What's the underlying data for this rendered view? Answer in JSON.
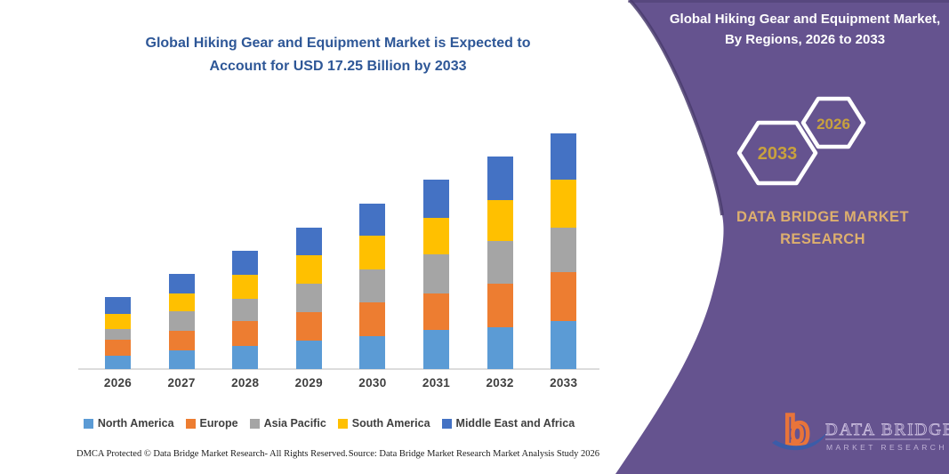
{
  "page": {
    "background": "#FFFFFF",
    "accent_purple": "#65538F",
    "panel_edge_dark": "#4A3C6E"
  },
  "left_panel": {
    "title_line1": "Global Hiking Gear and Equipment Market is Expected to",
    "title_line2": "Account for USD 17.25 Billion by 2033",
    "title_color": "#2E5797",
    "footer": {
      "dmca": "DMCA Protected © Data Bridge Market Research-  All Rights Reserved.",
      "source": "Source: Data Bridge Market Research  Market Analysis Study 2026"
    }
  },
  "right_panel": {
    "title": "Global Hiking Gear and Equipment Market, By Regions, 2026 to 2033",
    "hexagons": [
      {
        "label": "2033"
      },
      {
        "label": "2026"
      }
    ],
    "hexagon_label_color": "#C8A13E",
    "brand_line1": "DATA BRIDGE MARKET",
    "brand_line2": "RESEARCH",
    "brand_color": "#DDAF6E",
    "logo": {
      "wordmark": "DATA BRIDGE",
      "subtext": "MARKET RESEARCH",
      "b_color": "#E8743A",
      "swoosh_color": "#3B5CA8",
      "wordmark_color": "#CFC2E2"
    }
  },
  "chart_data": {
    "type": "bar",
    "stacked": true,
    "title": "Global Hiking Gear and Equipment Market is Expected to Account for USD 17.25 Billion by 2033",
    "unit": "USD Billion",
    "categories": [
      "2026",
      "2027",
      "2028",
      "2029",
      "2030",
      "2031",
      "2032",
      "2033"
    ],
    "series": [
      {
        "name": "North America",
        "color": "#5B9BD5",
        "values": [
          1.0,
          1.38,
          1.7,
          2.1,
          2.42,
          2.89,
          3.07,
          3.54
        ]
      },
      {
        "name": "Europe",
        "color": "#ED7D31",
        "values": [
          1.15,
          1.42,
          1.8,
          2.05,
          2.44,
          2.66,
          3.15,
          3.54
        ]
      },
      {
        "name": "Asia Pacific",
        "color": "#A5A5A5",
        "values": [
          0.75,
          1.4,
          1.65,
          2.08,
          2.44,
          2.85,
          3.15,
          3.26
        ]
      },
      {
        "name": "South America",
        "color": "#FFC000",
        "values": [
          1.15,
          1.32,
          1.73,
          2.08,
          2.46,
          2.66,
          3.02,
          3.5
        ]
      },
      {
        "name": "Middle East and Africa",
        "color": "#4472C4",
        "values": [
          1.22,
          1.47,
          1.8,
          2.04,
          2.35,
          2.8,
          3.18,
          3.41
        ]
      }
    ],
    "totals": [
      5.27,
      6.99,
      8.68,
      10.35,
      12.11,
      13.86,
      15.57,
      17.25
    ],
    "ylim": [
      0,
      18
    ],
    "grid": false,
    "y_axis_shown": false,
    "legend_position": "bottom",
    "xlabel": "",
    "ylabel": "",
    "note": "Segment values estimated from bar heights; 2033 total anchored to USD 17.25 billion stated in the title."
  }
}
